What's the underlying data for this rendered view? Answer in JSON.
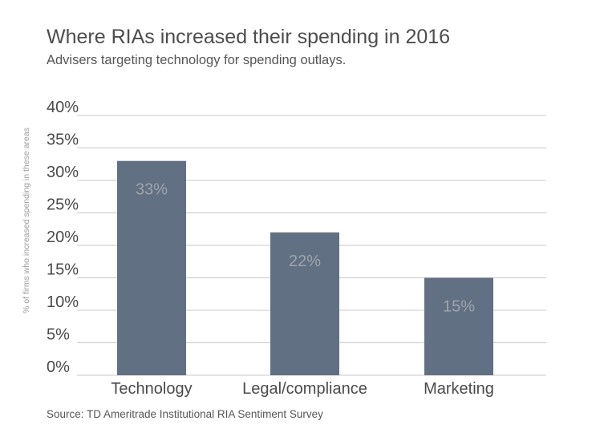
{
  "chart_data": {
    "type": "bar",
    "title": "Where RIAs increased their spending in 2016",
    "subtitle": "Advisers targeting technology for spending outlays.",
    "ylabel": "% of firms who increased spending in these areas",
    "xlabel": "",
    "categories": [
      "Technology",
      "Legal/compliance",
      "Marketing"
    ],
    "values": [
      33,
      22,
      15
    ],
    "data_labels": [
      "33%",
      "22%",
      "15%"
    ],
    "ylim": [
      0,
      40
    ],
    "yticks": [
      0,
      5,
      10,
      15,
      20,
      25,
      30,
      35,
      40
    ],
    "ytick_labels": [
      "0%",
      "5%",
      "10%",
      "15%",
      "20%",
      "25%",
      "30%",
      "35%",
      "40%"
    ],
    "grid": true,
    "legend": "none",
    "source": "Source: TD Ameritrade Institutional RIA Sentiment Survey",
    "colors": {
      "bar": "#627083",
      "grid": "#c8c8c8",
      "tick_text": "#4a4a4a",
      "data_label": "#9ea4ac"
    }
  }
}
